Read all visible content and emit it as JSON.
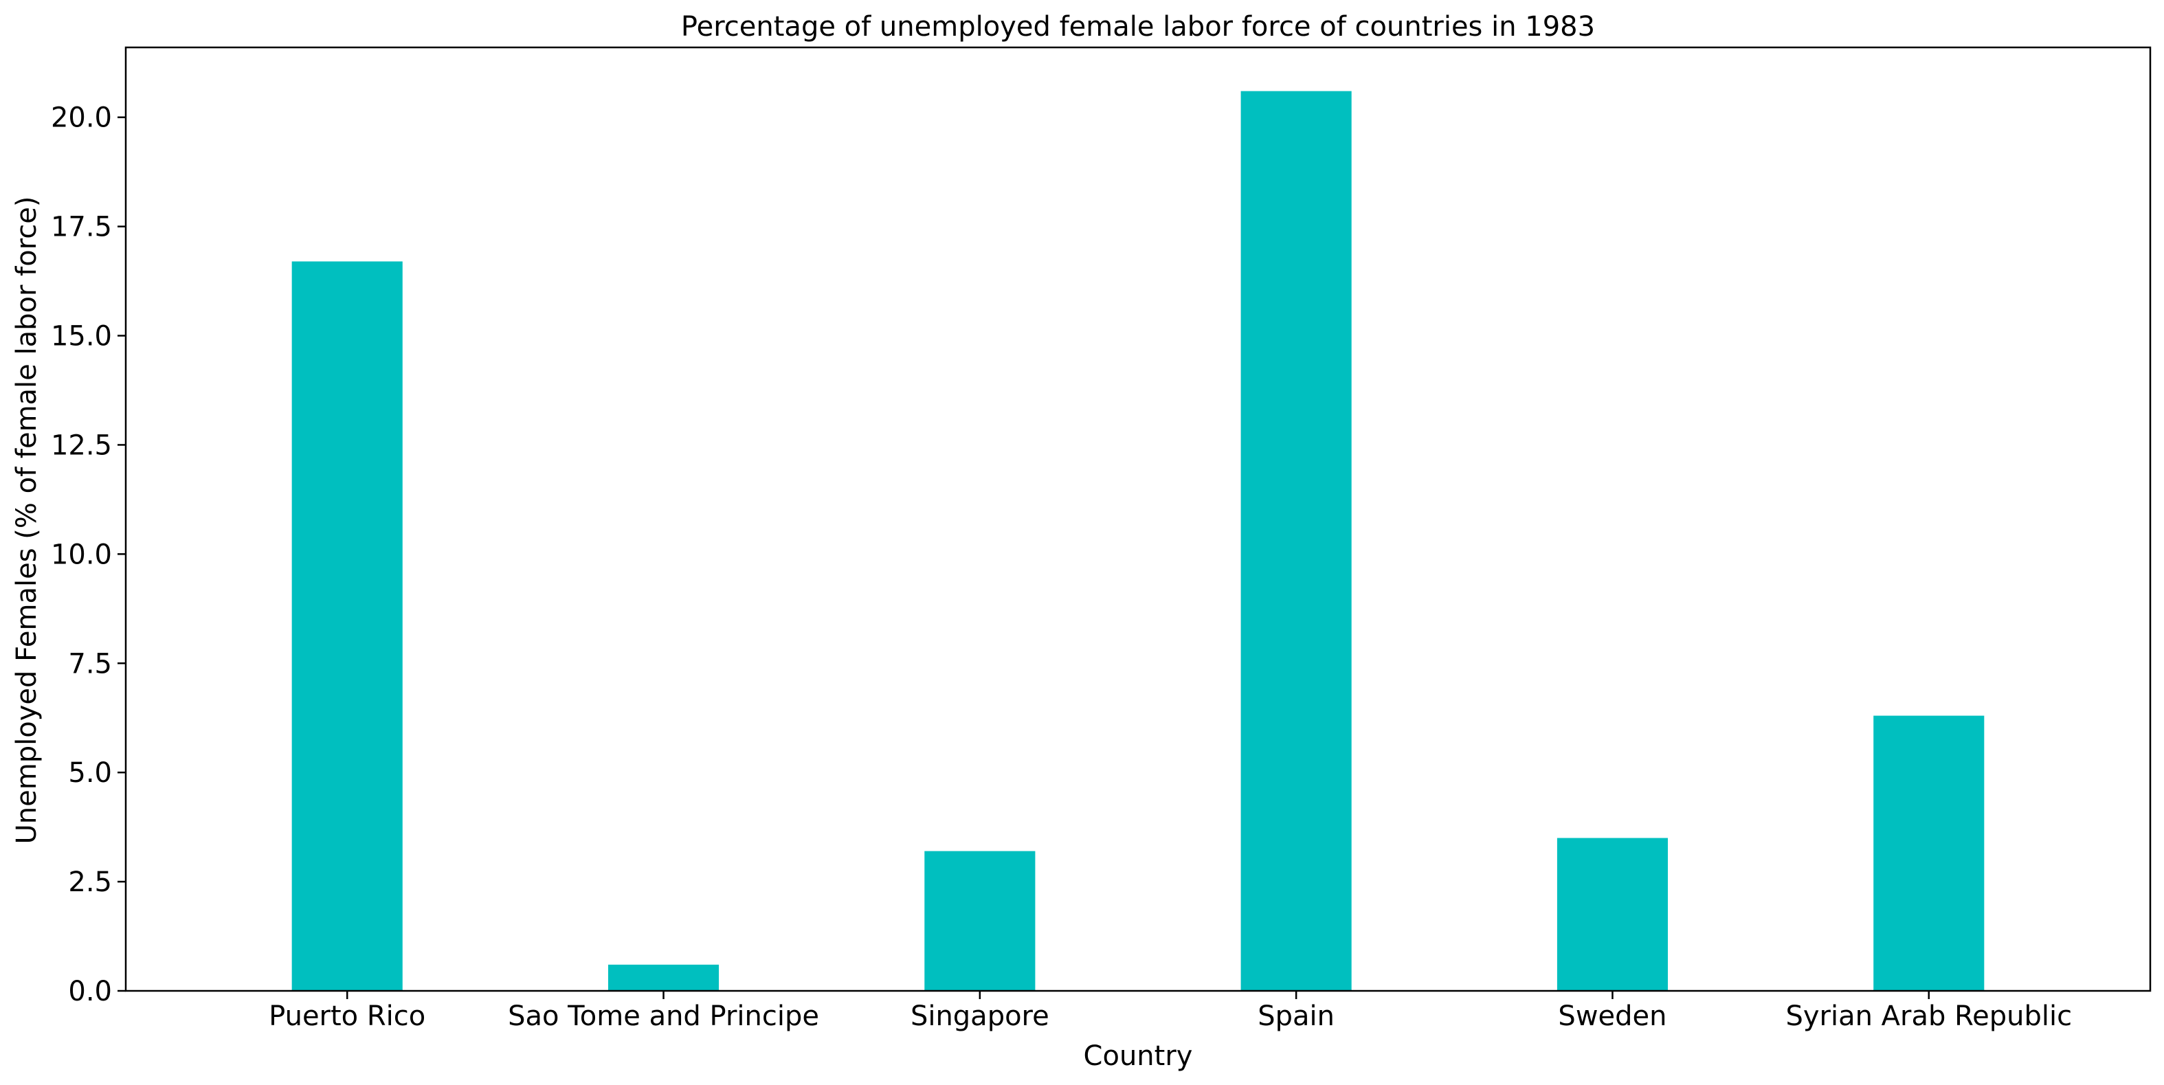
{
  "chart_data": {
    "type": "bar",
    "title": "Percentage of unemployed female labor force of countries in 1983",
    "xlabel": "Country",
    "ylabel": "Unemployed Females (% of female labor force)",
    "categories": [
      "Puerto Rico",
      "Sao Tome and Principe",
      "Singapore",
      "Spain",
      "Sweden",
      "Syrian Arab Republic"
    ],
    "values": [
      16.7,
      0.6,
      3.2,
      20.6,
      3.5,
      6.3
    ],
    "ylim": [
      0,
      21.6
    ],
    "yticks": [
      "0.0",
      "2.5",
      "5.0",
      "7.5",
      "10.0",
      "12.5",
      "15.0",
      "17.5",
      "20.0"
    ],
    "bar_color": "#00bfbf",
    "grid": false,
    "legend": "none"
  }
}
